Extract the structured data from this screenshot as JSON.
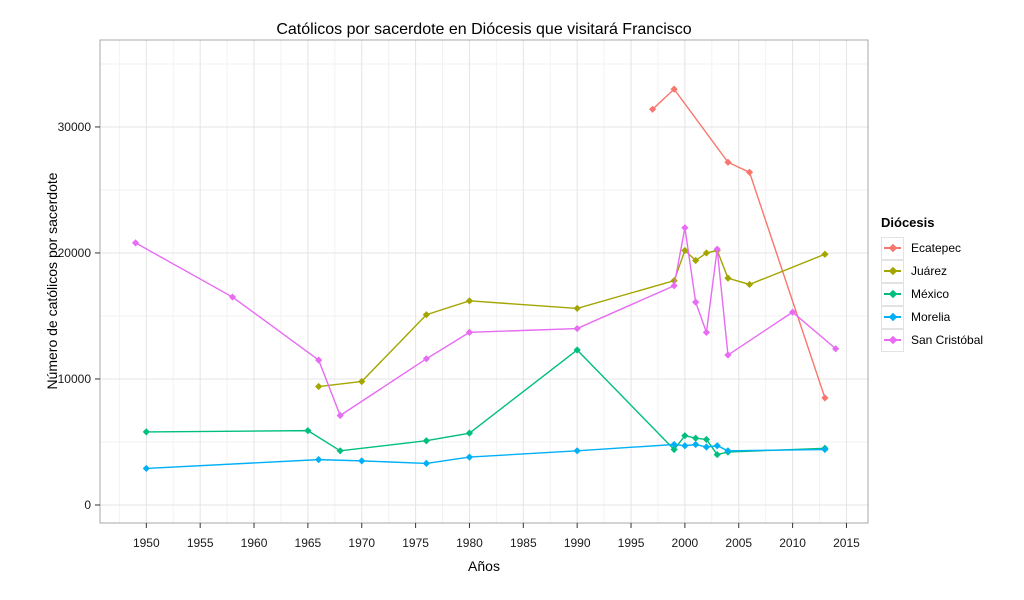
{
  "title": "Católicos por sacerdote en Diócesis que visitará Francisco",
  "legend": {
    "title": "Diócesis",
    "items": [
      {
        "label": "Ecatepec",
        "color": "#F8766D"
      },
      {
        "label": "Juárez",
        "color": "#A3A500"
      },
      {
        "label": "México",
        "color": "#00BF7D"
      },
      {
        "label": "Morelia",
        "color": "#00B0F6"
      },
      {
        "label": "San Cristóbal",
        "color": "#E76BF3"
      }
    ]
  },
  "chart_data": {
    "type": "line",
    "title": "Católicos por sacerdote en Diócesis que visitará Francisco",
    "xlabel": "Años",
    "ylabel": "Número de católicos por sacerdote",
    "x_ticks": [
      1950,
      1955,
      1960,
      1965,
      1970,
      1975,
      1980,
      1985,
      1990,
      1995,
      2000,
      2005,
      2010,
      2015
    ],
    "y_ticks": [
      0,
      10000,
      20000,
      30000
    ],
    "xlim": [
      1945.7,
      2017.0
    ],
    "ylim": [
      -1430,
      36900
    ],
    "grid": "major and minor, light gray on white panel",
    "legend_position": "right",
    "legend_title": "Diócesis",
    "marker": "diamond",
    "series": [
      {
        "name": "Ecatepec",
        "color": "#F8766D",
        "points": [
          [
            1997,
            31400
          ],
          [
            1999,
            33000
          ],
          [
            2004,
            27200
          ],
          [
            2006,
            26400
          ],
          [
            2013,
            8500
          ]
        ]
      },
      {
        "name": "Juárez",
        "color": "#A3A500",
        "points": [
          [
            1966,
            9400
          ],
          [
            1970,
            9800
          ],
          [
            1976,
            15100
          ],
          [
            1980,
            16200
          ],
          [
            1990,
            15600
          ],
          [
            1999,
            17800
          ],
          [
            2000,
            20200
          ],
          [
            2001,
            19400
          ],
          [
            2002,
            20000
          ],
          [
            2003,
            20200
          ],
          [
            2004,
            18000
          ],
          [
            2006,
            17500
          ],
          [
            2013,
            19900
          ]
        ]
      },
      {
        "name": "México",
        "color": "#00BF7D",
        "points": [
          [
            1950,
            5800
          ],
          [
            1965,
            5900
          ],
          [
            1968,
            4300
          ],
          [
            1976,
            5100
          ],
          [
            1980,
            5700
          ],
          [
            1990,
            12300
          ],
          [
            1999,
            4400
          ],
          [
            2000,
            5500
          ],
          [
            2001,
            5300
          ],
          [
            2002,
            5200
          ],
          [
            2003,
            4000
          ],
          [
            2004,
            4200
          ],
          [
            2013,
            4500
          ]
        ]
      },
      {
        "name": "Morelia",
        "color": "#00B0F6",
        "points": [
          [
            1950,
            2900
          ],
          [
            1966,
            3600
          ],
          [
            1970,
            3500
          ],
          [
            1976,
            3300
          ],
          [
            1980,
            3800
          ],
          [
            1990,
            4300
          ],
          [
            1999,
            4800
          ],
          [
            2000,
            4700
          ],
          [
            2001,
            4800
          ],
          [
            2002,
            4600
          ],
          [
            2003,
            4700
          ],
          [
            2004,
            4300
          ],
          [
            2013,
            4400
          ]
        ]
      },
      {
        "name": "San Cristóbal",
        "color": "#E76BF3",
        "points": [
          [
            1949,
            20800
          ],
          [
            1958,
            16500
          ],
          [
            1966,
            11500
          ],
          [
            1968,
            7100
          ],
          [
            1976,
            11600
          ],
          [
            1980,
            13700
          ],
          [
            1990,
            14000
          ],
          [
            1999,
            17400
          ],
          [
            2000,
            22000
          ],
          [
            2001,
            16100
          ],
          [
            2002,
            13700
          ],
          [
            2003,
            20300
          ],
          [
            2004,
            11900
          ],
          [
            2010,
            15300
          ],
          [
            2014,
            12400
          ]
        ]
      }
    ]
  }
}
